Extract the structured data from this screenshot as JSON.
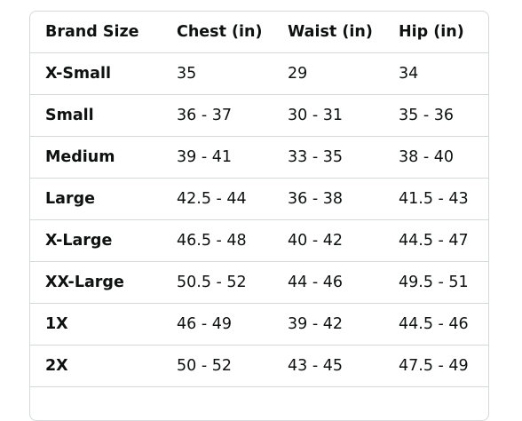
{
  "size_chart": {
    "headers": [
      "Brand Size",
      "Chest (in)",
      "Waist (in)",
      "Hip (in)"
    ],
    "rows": [
      [
        "X-Small",
        "35",
        "29",
        "34"
      ],
      [
        "Small",
        "36 - 37",
        "30 - 31",
        "35 - 36"
      ],
      [
        "Medium",
        "39 - 41",
        "33 - 35",
        "38 - 40"
      ],
      [
        "Large",
        "42.5 - 44",
        "36 - 38",
        "41.5 - 43"
      ],
      [
        "X-Large",
        "46.5 - 48",
        "40 - 42",
        "44.5 - 47"
      ],
      [
        "XX-Large",
        "50.5 - 52",
        "44 - 46",
        "49.5 - 51"
      ],
      [
        "1X",
        "46 - 49",
        "39 - 42",
        "44.5 - 46"
      ],
      [
        "2X",
        "50 - 52",
        "43 - 45",
        "47.5 - 49"
      ]
    ]
  }
}
